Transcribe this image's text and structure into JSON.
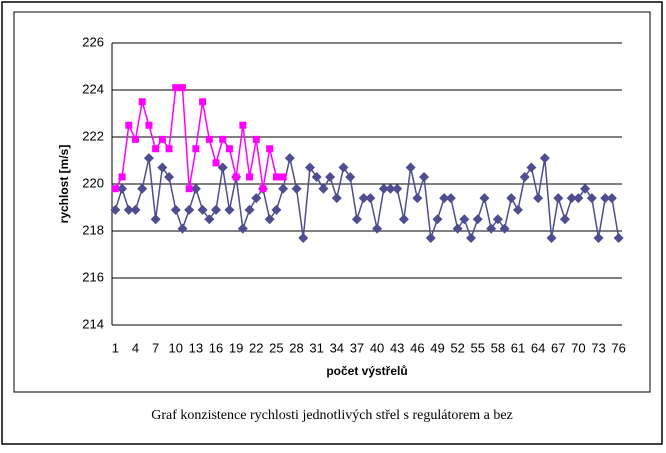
{
  "chart_data": {
    "type": "line",
    "y_label": "rychlost [m/s]",
    "x_label": "počet výstřelů",
    "categories": [
      "1",
      null,
      null,
      "4",
      null,
      null,
      "7",
      null,
      null,
      "10",
      null,
      null,
      "13",
      null,
      null,
      "16",
      null,
      null,
      "19",
      null,
      null,
      "22",
      null,
      null,
      "25",
      null,
      null,
      "28",
      null,
      null,
      "31",
      null,
      null,
      "34",
      null,
      null,
      "37",
      null,
      null,
      "40",
      null,
      null,
      "43",
      null,
      null,
      "46",
      null,
      null,
      "49",
      null,
      null,
      "52",
      null,
      null,
      "55",
      null,
      null,
      "58",
      null,
      null,
      "61",
      null,
      null,
      "64",
      null,
      null,
      "67",
      null,
      null,
      "70",
      null,
      null,
      "73",
      null,
      null,
      "76"
    ],
    "series": [
      {
        "color": "#4d4d8f",
        "marker": "diamond",
        "values": [
          218.9,
          219.8,
          218.9,
          218.9,
          219.8,
          221.1,
          218.5,
          220.7,
          220.3,
          218.9,
          218.1,
          218.9,
          219.8,
          218.9,
          218.5,
          218.9,
          220.7,
          218.9,
          220.3,
          218.1,
          218.9,
          219.4,
          219.8,
          218.5,
          218.9,
          219.8,
          221.1,
          219.8,
          217.7,
          220.7,
          220.3,
          219.8,
          220.3,
          219.4,
          220.7,
          220.3,
          218.5,
          219.4,
          219.4,
          218.1,
          219.8,
          219.8,
          219.8,
          218.5,
          220.7,
          219.4,
          220.3,
          217.7,
          218.5,
          219.4,
          219.4,
          218.1,
          218.5,
          217.7,
          218.5,
          219.4,
          218.1,
          218.5,
          218.1,
          219.4,
          218.9,
          220.3,
          220.7,
          219.4,
          221.1,
          217.7,
          219.4,
          218.5,
          219.4,
          219.4,
          219.8,
          219.4,
          217.7,
          219.4,
          219.4,
          217.7
        ]
      },
      {
        "color": "#ff00ff",
        "marker": "square",
        "values": [
          219.8,
          220.3,
          222.5,
          221.9,
          223.5,
          222.5,
          221.5,
          221.9,
          221.5,
          224.1,
          224.1,
          219.8,
          221.5,
          223.5,
          221.9,
          220.9,
          221.9,
          221.5,
          220.3,
          222.5,
          220.3,
          221.9,
          219.8,
          221.5,
          220.3,
          220.3,
          null,
          null,
          null,
          null,
          null,
          null,
          null,
          null,
          null,
          null,
          null,
          null,
          null,
          null,
          null,
          null,
          null,
          null,
          null,
          null,
          null,
          null,
          null,
          null,
          null,
          null,
          null,
          null,
          null,
          null,
          null,
          null,
          null,
          null,
          null,
          null,
          null,
          null,
          null,
          null,
          null,
          null,
          null,
          null,
          null,
          null,
          null,
          null,
          null,
          null
        ]
      }
    ],
    "ylim": [
      214,
      226
    ],
    "yticks": [
      214,
      216,
      218,
      220,
      222,
      224,
      226
    ],
    "grid": true
  },
  "caption": "Graf konzistence rychlosti jednotlivých střel s regulátorem a bez"
}
